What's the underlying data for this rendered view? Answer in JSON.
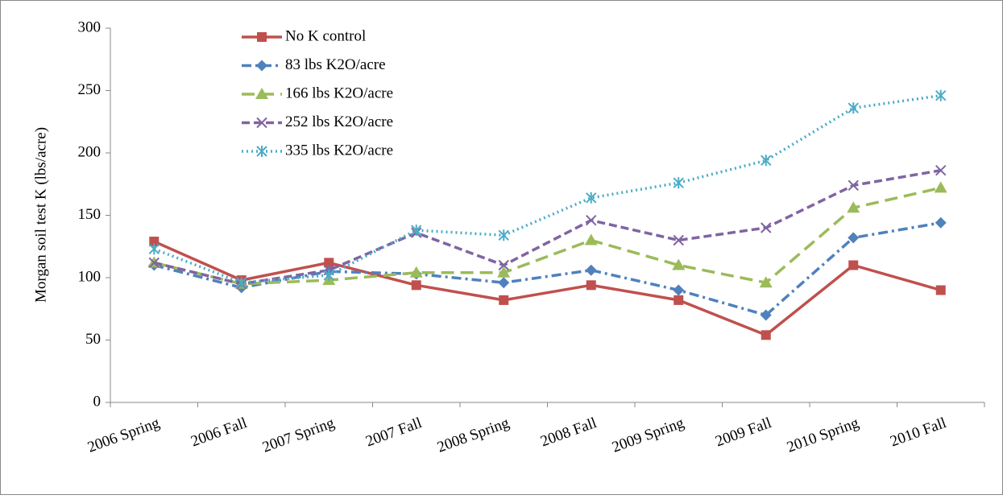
{
  "chart_data": {
    "type": "line",
    "y_label": "Morgan soil test K (lbs/acre)",
    "categories": [
      "2006 Spring",
      "2006 Fall",
      "2007 Spring",
      "2007 Fall",
      "2008 Spring",
      "2008 Fall",
      "2009 Spring",
      "2009 Fall",
      "2010 Spring",
      "2010 Fall"
    ],
    "series": [
      {
        "name": "No K control",
        "color": "#c0504d",
        "dash": "solid",
        "marker": "square",
        "values": [
          129,
          98,
          112,
          94,
          82,
          94,
          82,
          54,
          110,
          90
        ]
      },
      {
        "name": "83 lbs K2O/acre",
        "color": "#4f81bd",
        "dash": "dash-dot",
        "marker": "diamond",
        "values": [
          110,
          92,
          105,
          103,
          96,
          106,
          90,
          70,
          132,
          144
        ]
      },
      {
        "name": "166 lbs K2O/acre",
        "color": "#9bbb59",
        "dash": "long-dash",
        "marker": "triangle",
        "values": [
          112,
          95,
          98,
          104,
          104,
          130,
          110,
          96,
          156,
          172
        ]
      },
      {
        "name": "252 lbs K2O/acre",
        "color": "#8064a2",
        "dash": "dash",
        "marker": "x",
        "values": [
          112,
          95,
          106,
          136,
          110,
          146,
          130,
          140,
          174,
          186
        ]
      },
      {
        "name": "335 lbs K2O/acre",
        "color": "#4bacc6",
        "dash": "dot",
        "marker": "star",
        "values": [
          123,
          96,
          102,
          138,
          134,
          164,
          176,
          194,
          236,
          246
        ]
      }
    ],
    "ylim": [
      0,
      300
    ],
    "yticks": [
      0,
      50,
      100,
      150,
      200,
      250,
      300
    ],
    "grid": false,
    "legend": "top-left"
  }
}
